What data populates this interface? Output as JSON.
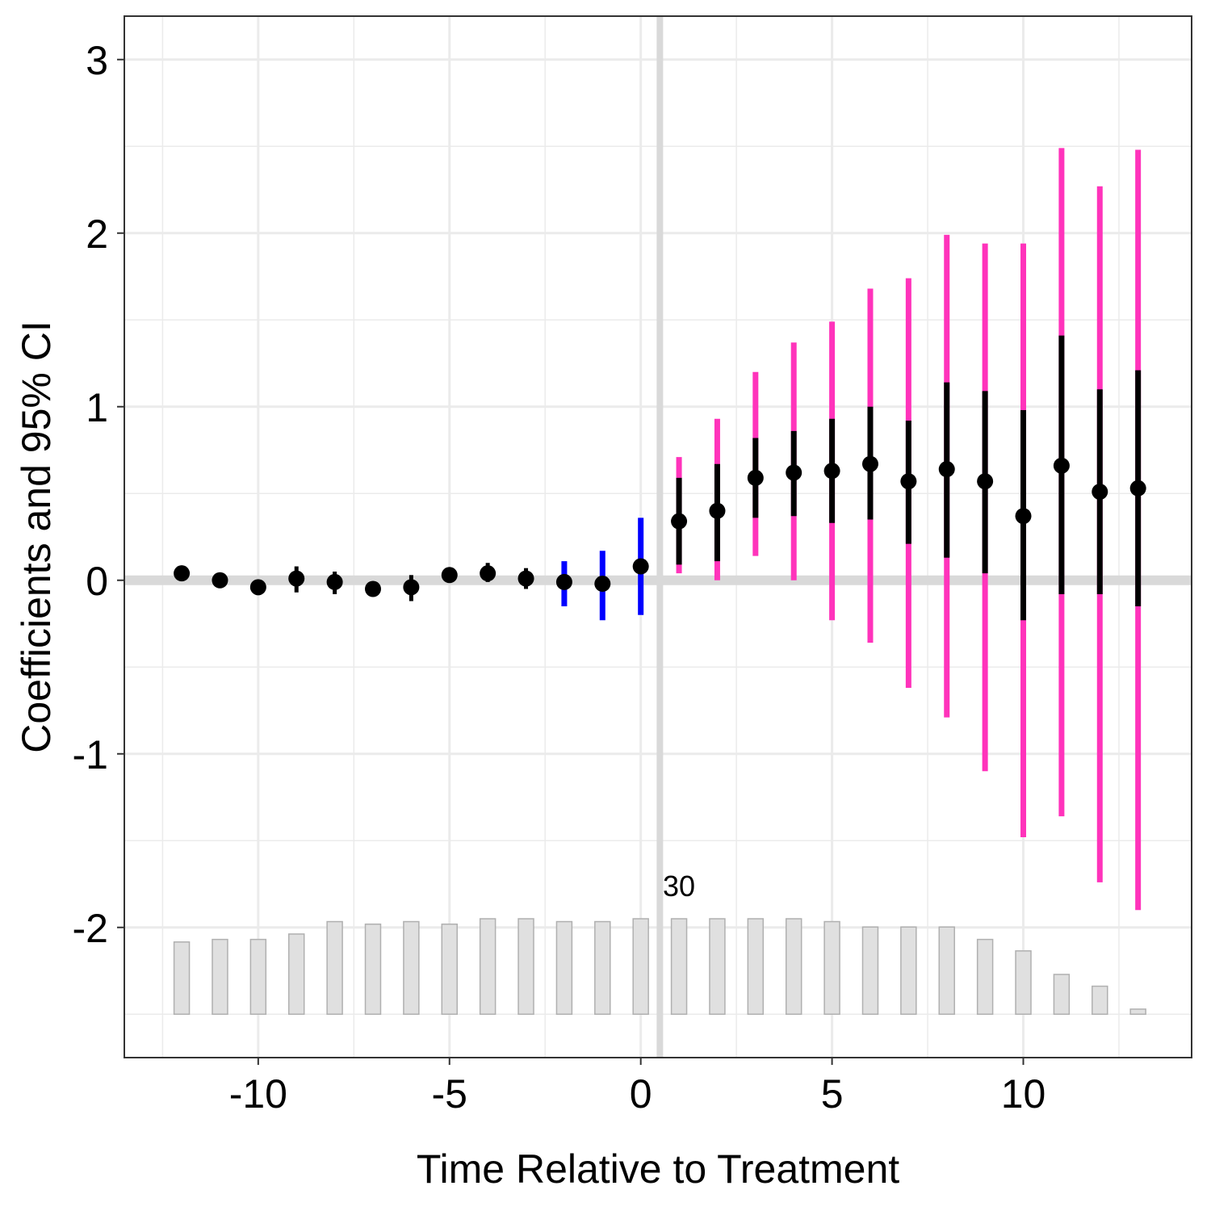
{
  "chart_data": {
    "type": "scatter",
    "subtype": "event-study coefficient plot with 95% CI error bars and count histogram",
    "title": "",
    "xlabel": "Time Relative to Treatment",
    "ylabel": "Coefficients and 95% CI",
    "xlim": [
      -13.5,
      14.4
    ],
    "ylim": [
      -2.75,
      3.25
    ],
    "x_ticks": [
      -10,
      -5,
      0,
      5,
      10
    ],
    "x_tick_labels": [
      "-10",
      "-5",
      "0",
      "5",
      "10"
    ],
    "y_ticks": [
      3,
      2,
      1,
      0,
      -1,
      -2
    ],
    "y_tick_labels": [
      "3",
      "2",
      "1",
      "0",
      "-1",
      "-2"
    ],
    "grid": true,
    "reference_lines": {
      "horizontal_y": 0,
      "vertical_x": 0.5
    },
    "annotation": {
      "text": "30",
      "x": 1.0,
      "y": -1.82
    },
    "colors": {
      "point": "#000000",
      "ci_inner": "#000000",
      "ci_outer_post": "#ff33bb",
      "ci_pre_trend": "#0000ff",
      "histogram_fill": "#e0e0e0",
      "histogram_stroke": "#b0b0b0",
      "gridline": "#ebebeb",
      "reference_line": "#d9d9d9"
    },
    "points": [
      {
        "x": -12,
        "y": 0.04,
        "ci_low": 0.03,
        "ci_high": 0.05,
        "inner_low": null,
        "inner_high": null
      },
      {
        "x": -11,
        "y": 0.0,
        "ci_low": -0.01,
        "ci_high": 0.01,
        "inner_low": null,
        "inner_high": null
      },
      {
        "x": -10,
        "y": -0.04,
        "ci_low": -0.05,
        "ci_high": -0.03,
        "inner_low": null,
        "inner_high": null
      },
      {
        "x": -9,
        "y": 0.01,
        "ci_low": -0.07,
        "ci_high": 0.08,
        "inner_low": null,
        "inner_high": null
      },
      {
        "x": -8,
        "y": -0.01,
        "ci_low": -0.08,
        "ci_high": 0.05,
        "inner_low": null,
        "inner_high": null
      },
      {
        "x": -7,
        "y": -0.05,
        "ci_low": -0.06,
        "ci_high": -0.04,
        "inner_low": null,
        "inner_high": null
      },
      {
        "x": -6,
        "y": -0.04,
        "ci_low": -0.12,
        "ci_high": 0.03,
        "inner_low": null,
        "inner_high": null
      },
      {
        "x": -5,
        "y": 0.03,
        "ci_low": -0.01,
        "ci_high": 0.06,
        "inner_low": null,
        "inner_high": null
      },
      {
        "x": -4,
        "y": 0.04,
        "ci_low": -0.01,
        "ci_high": 0.1,
        "inner_low": null,
        "inner_high": null
      },
      {
        "x": -3,
        "y": 0.01,
        "ci_low": -0.05,
        "ci_high": 0.07,
        "inner_low": null,
        "inner_high": null
      },
      {
        "x": -2,
        "y": -0.01,
        "ci_low": -0.15,
        "ci_high": 0.11,
        "inner_low": null,
        "inner_high": null
      },
      {
        "x": -1,
        "y": -0.02,
        "ci_low": -0.23,
        "ci_high": 0.17,
        "inner_low": null,
        "inner_high": null
      },
      {
        "x": 0,
        "y": 0.08,
        "ci_low": -0.2,
        "ci_high": 0.36,
        "inner_low": null,
        "inner_high": null
      },
      {
        "x": 1,
        "y": 0.34,
        "ci_low": 0.04,
        "ci_high": 0.71,
        "inner_low": 0.09,
        "inner_high": 0.59
      },
      {
        "x": 2,
        "y": 0.4,
        "ci_low": 0.0,
        "ci_high": 0.93,
        "inner_low": 0.11,
        "inner_high": 0.67
      },
      {
        "x": 3,
        "y": 0.59,
        "ci_low": 0.14,
        "ci_high": 1.2,
        "inner_low": 0.36,
        "inner_high": 0.82
      },
      {
        "x": 4,
        "y": 0.62,
        "ci_low": 0.0,
        "ci_high": 1.37,
        "inner_low": 0.37,
        "inner_high": 0.86
      },
      {
        "x": 5,
        "y": 0.63,
        "ci_low": -0.23,
        "ci_high": 1.49,
        "inner_low": 0.33,
        "inner_high": 0.93
      },
      {
        "x": 6,
        "y": 0.67,
        "ci_low": -0.36,
        "ci_high": 1.68,
        "inner_low": 0.35,
        "inner_high": 1.0
      },
      {
        "x": 7,
        "y": 0.57,
        "ci_low": -0.62,
        "ci_high": 1.74,
        "inner_low": 0.21,
        "inner_high": 0.92
      },
      {
        "x": 8,
        "y": 0.64,
        "ci_low": -0.79,
        "ci_high": 1.99,
        "inner_low": 0.13,
        "inner_high": 1.14
      },
      {
        "x": 9,
        "y": 0.57,
        "ci_low": -1.1,
        "ci_high": 1.94,
        "inner_low": 0.04,
        "inner_high": 1.09
      },
      {
        "x": 10,
        "y": 0.37,
        "ci_low": -1.48,
        "ci_high": 1.94,
        "inner_low": -0.23,
        "inner_high": 0.98
      },
      {
        "x": 11,
        "y": 0.66,
        "ci_low": -1.36,
        "ci_high": 2.49,
        "inner_low": -0.08,
        "inner_high": 1.41
      },
      {
        "x": 12,
        "y": 0.51,
        "ci_low": -1.74,
        "ci_high": 2.27,
        "inner_low": -0.08,
        "inner_high": 1.1
      },
      {
        "x": 13,
        "y": 0.53,
        "ci_low": -1.9,
        "ci_high": 2.48,
        "inner_low": -0.15,
        "inner_high": 1.21
      }
    ],
    "histogram": {
      "description": "relative sample counts per period, drawn at the bottom of the panel; max count labelled 30",
      "baseline_y": -2.5,
      "max_label": "30",
      "max_top_y": -1.95,
      "counts": [
        {
          "x": -12,
          "count": 22.7
        },
        {
          "x": -11,
          "count": 23.5
        },
        {
          "x": -10,
          "count": 23.5
        },
        {
          "x": -9,
          "count": 25.2
        },
        {
          "x": -8,
          "count": 29.1
        },
        {
          "x": -7,
          "count": 28.3
        },
        {
          "x": -6,
          "count": 29.1
        },
        {
          "x": -5,
          "count": 28.3
        },
        {
          "x": -4,
          "count": 30.0
        },
        {
          "x": -3,
          "count": 30.0
        },
        {
          "x": -2,
          "count": 29.1
        },
        {
          "x": -1,
          "count": 29.1
        },
        {
          "x": 0,
          "count": 30.0
        },
        {
          "x": 1,
          "count": 30.0
        },
        {
          "x": 2,
          "count": 30.0
        },
        {
          "x": 3,
          "count": 30.0
        },
        {
          "x": 4,
          "count": 30.0
        },
        {
          "x": 5,
          "count": 29.1
        },
        {
          "x": 6,
          "count": 27.4
        },
        {
          "x": 7,
          "count": 27.4
        },
        {
          "x": 8,
          "count": 27.4
        },
        {
          "x": 9,
          "count": 23.5
        },
        {
          "x": 10,
          "count": 19.9
        },
        {
          "x": 11,
          "count": 12.5
        },
        {
          "x": 12,
          "count": 8.8
        },
        {
          "x": 13,
          "count": 1.6
        }
      ]
    }
  }
}
